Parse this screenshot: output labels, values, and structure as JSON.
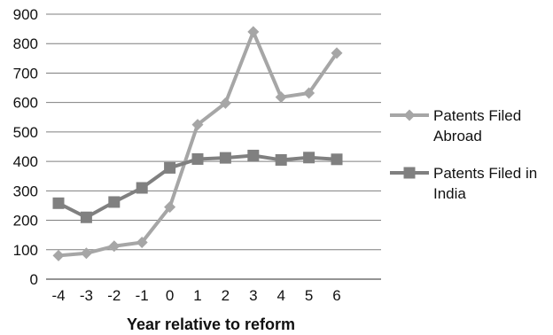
{
  "chart_data": {
    "type": "line",
    "title": "",
    "xlabel": "Year relative to reform",
    "ylabel": "",
    "x": [
      "-4",
      "-3",
      "-2",
      "-1",
      "0",
      "1",
      "2",
      "3",
      "4",
      "5",
      "6"
    ],
    "yticks": [
      "0",
      "100",
      "200",
      "300",
      "400",
      "500",
      "600",
      "700",
      "800",
      "900"
    ],
    "ylim": [
      0,
      900
    ],
    "grid": true,
    "legend_position": "right",
    "series": [
      {
        "name_lines": [
          "Patents Filed",
          "Abroad"
        ],
        "marker": "diamond",
        "color": "#a6a6a6",
        "values": [
          80,
          88,
          112,
          125,
          245,
          525,
          598,
          840,
          618,
          632,
          768
        ]
      },
      {
        "name_lines": [
          "Patents Filed in",
          "India"
        ],
        "marker": "square",
        "color": "#808080",
        "values": [
          258,
          210,
          262,
          310,
          378,
          408,
          412,
          420,
          405,
          413,
          407
        ]
      }
    ]
  }
}
